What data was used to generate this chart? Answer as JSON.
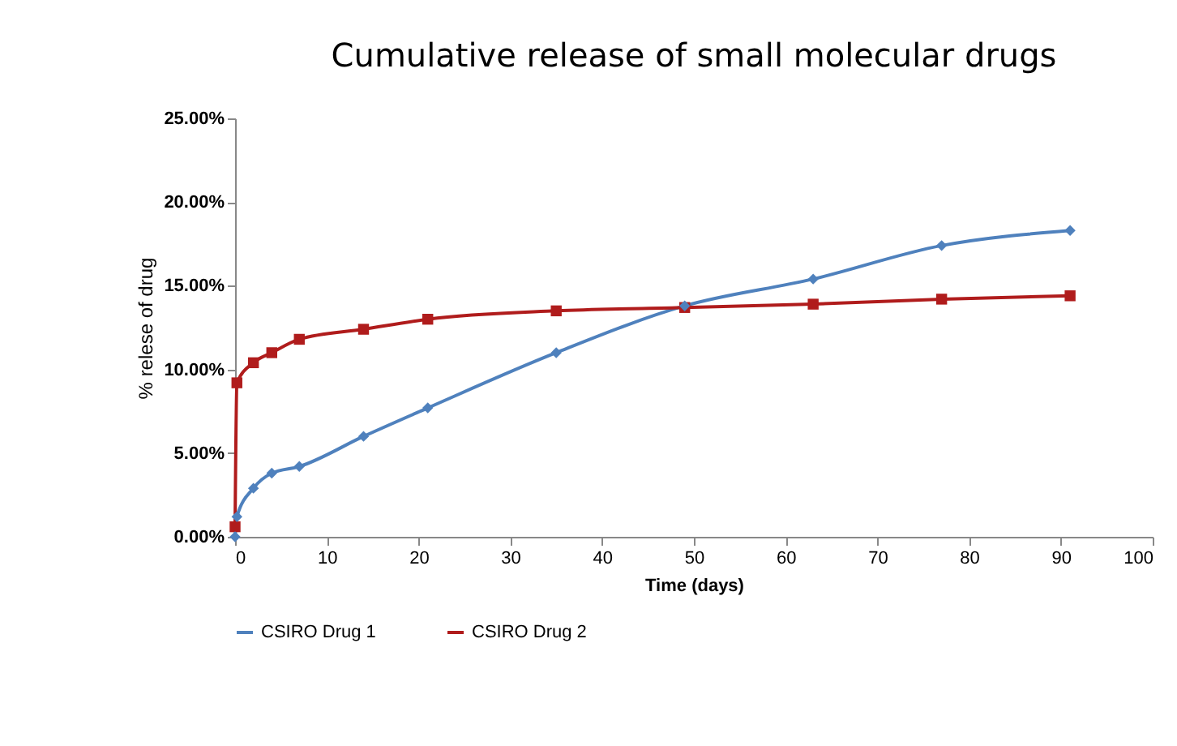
{
  "chart_data": {
    "type": "line",
    "title": "Cumulative release of small molecular drugs",
    "xlabel": "Time (days)",
    "ylabel": "% relese of drug",
    "series": [
      {
        "name": "CSIRO Drug 1",
        "color": "#4f81bd",
        "marker": "diamond",
        "x": [
          0,
          0.2,
          2,
          4,
          7,
          14,
          21,
          35,
          49,
          63,
          77,
          91
        ],
        "values": [
          0,
          1.2,
          2.9,
          3.8,
          4.2,
          6.0,
          7.7,
          11.0,
          13.8,
          15.4,
          17.4,
          18.3
        ]
      },
      {
        "name": "CSIRO Drug 2",
        "color": "#b01c1c",
        "marker": "square",
        "x": [
          0,
          0.2,
          2,
          4,
          7,
          14,
          21,
          35,
          49,
          63,
          77,
          91
        ],
        "values": [
          0.6,
          9.2,
          10.4,
          11.0,
          11.8,
          12.4,
          13.0,
          13.5,
          13.7,
          13.9,
          14.2,
          14.4
        ]
      }
    ],
    "xlim": [
      0,
      100
    ],
    "xticks": [
      0,
      10,
      20,
      30,
      40,
      50,
      60,
      70,
      80,
      90,
      100
    ],
    "ylim": [
      0,
      25
    ],
    "yticks": [
      {
        "value": 0,
        "label": "0.00%"
      },
      {
        "value": 5,
        "label": "5.00%"
      },
      {
        "value": 10,
        "label": "10.00%"
      },
      {
        "value": 15,
        "label": "15.00%"
      },
      {
        "value": 20,
        "label": "20.00%"
      },
      {
        "value": 25,
        "label": "25.00%"
      }
    ],
    "grid": false,
    "legend": "bottom"
  }
}
